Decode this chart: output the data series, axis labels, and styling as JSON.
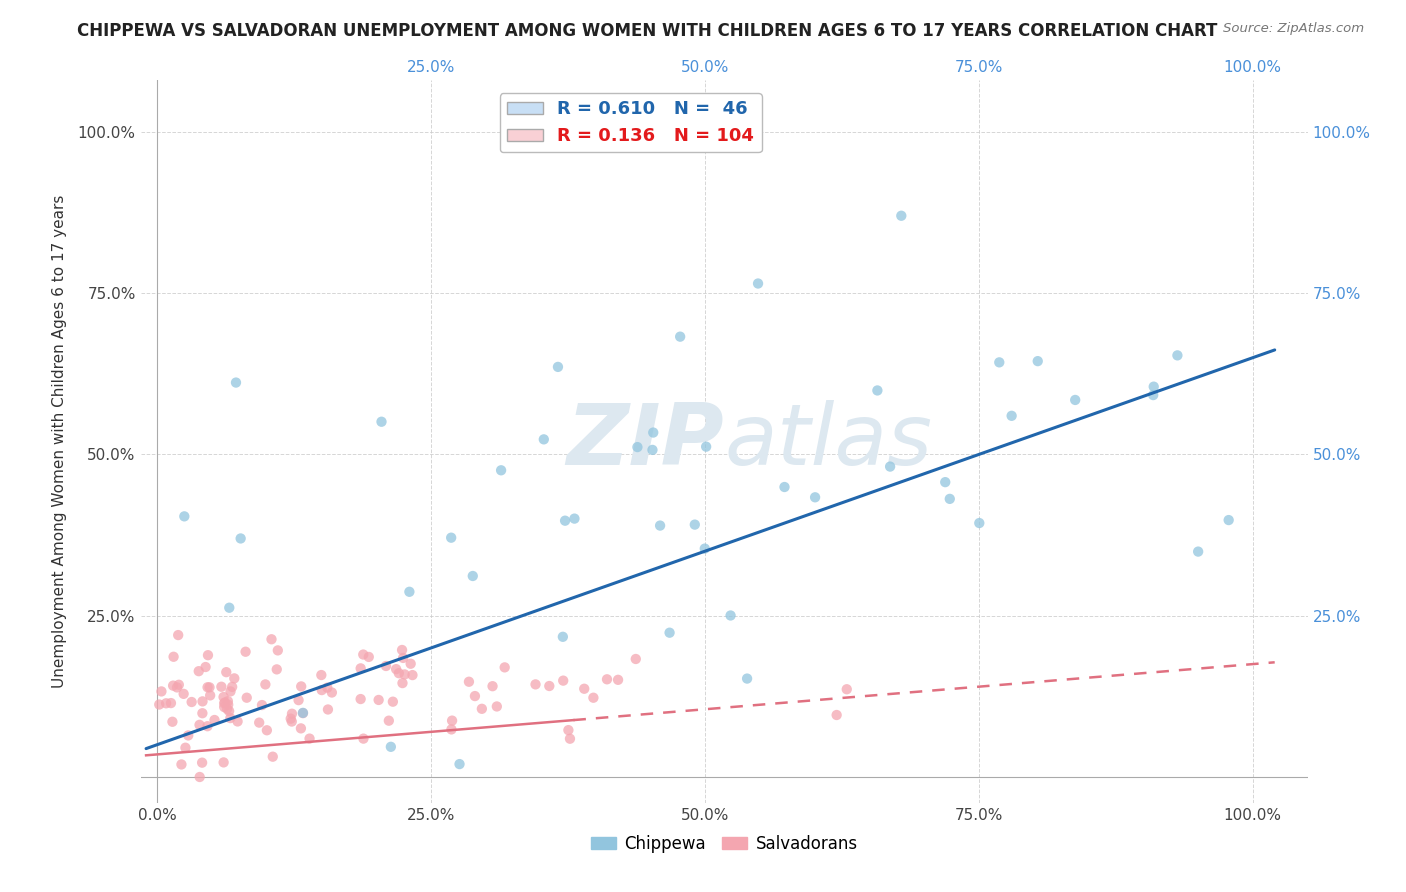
{
  "title": "CHIPPEWA VS SALVADORAN UNEMPLOYMENT AMONG WOMEN WITH CHILDREN AGES 6 TO 17 YEARS CORRELATION CHART",
  "source": "Source: ZipAtlas.com",
  "ylabel": "Unemployment Among Women with Children Ages 6 to 17 years",
  "chippewa_R": 0.61,
  "chippewa_N": 46,
  "salvadoran_R": 0.136,
  "salvadoran_N": 104,
  "chippewa_color": "#92c5de",
  "salvadoran_color": "#f4a6b0",
  "chippewa_line_color": "#2166ac",
  "salvadoran_line_color": "#e07080",
  "watermark_zip": "ZIP",
  "watermark_atlas": "atlas",
  "background_color": "#ffffff",
  "grid_color": "#cccccc",
  "right_axis_color": "#4a90d9",
  "legend_box_color": "#c8dff5",
  "legend_box_color2": "#f9d0d5"
}
